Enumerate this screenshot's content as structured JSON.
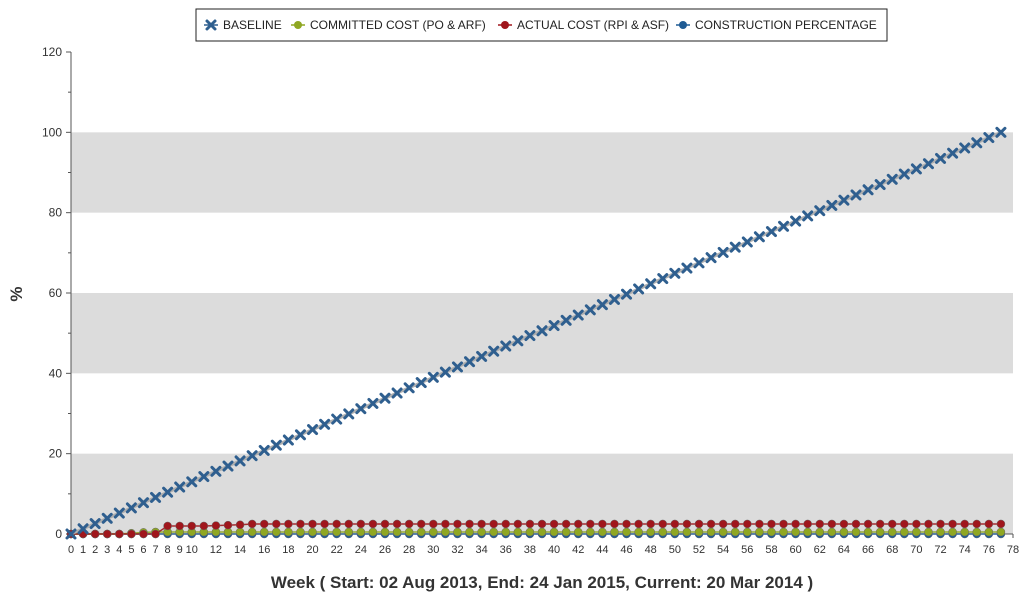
{
  "chart_data": {
    "type": "line",
    "xlabel": "Week ( Start: 02 Aug 2013, End: 24 Jan 2015, Current: 20 Mar 2014 )",
    "ylabel": "%",
    "ylim": [
      0,
      120
    ],
    "yticks": [
      0,
      20,
      40,
      60,
      80,
      100,
      120
    ],
    "xlim": [
      0,
      78
    ],
    "xtick_labels": [
      "0",
      "1",
      "2",
      "3",
      "4",
      "5",
      "6",
      "7",
      "8",
      "9",
      "10",
      "12",
      "14",
      "16",
      "18",
      "20",
      "22",
      "24",
      "26",
      "28",
      "30",
      "32",
      "34",
      "36",
      "38",
      "40",
      "42",
      "44",
      "46",
      "48",
      "50",
      "52",
      "54",
      "56",
      "58",
      "60",
      "62",
      "64",
      "66",
      "68",
      "70",
      "72",
      "74",
      "76",
      "78"
    ],
    "grid_bands": true,
    "legend_position": "top-center",
    "x_points": 78,
    "series": [
      {
        "name": "BASELINE",
        "marker": "x",
        "color": "#2f5f8f",
        "values": [
          0,
          1.3,
          2.6,
          3.9,
          5.2,
          6.5,
          7.8,
          9.1,
          10.4,
          11.7,
          13.0,
          14.3,
          15.6,
          16.9,
          18.2,
          19.5,
          20.8,
          22.1,
          23.4,
          24.7,
          26.0,
          27.3,
          28.6,
          29.9,
          31.2,
          32.5,
          33.8,
          35.1,
          36.4,
          37.7,
          39.0,
          40.3,
          41.6,
          42.9,
          44.2,
          45.5,
          46.8,
          48.1,
          49.4,
          50.6,
          51.9,
          53.2,
          54.5,
          55.8,
          57.1,
          58.4,
          59.7,
          61.0,
          62.3,
          63.6,
          64.9,
          66.2,
          67.5,
          68.8,
          70.1,
          71.4,
          72.7,
          74.0,
          75.3,
          76.6,
          77.9,
          79.2,
          80.5,
          81.8,
          83.1,
          84.4,
          85.7,
          87.0,
          88.3,
          89.6,
          90.9,
          92.2,
          93.5,
          94.8,
          96.1,
          97.4,
          98.7,
          100
        ]
      },
      {
        "name": "COMMITTED COST (PO & ARF)",
        "marker": "circle",
        "color": "#8fa722",
        "values": [
          0,
          0,
          0,
          0,
          0,
          0.2,
          0.4,
          0.5,
          0.5,
          0.5,
          0.5,
          0.5,
          0.5,
          0.5,
          0.5,
          0.5,
          0.5,
          0.5,
          0.5,
          0.5,
          0.5,
          0.5,
          0.5,
          0.5,
          0.5,
          0.5,
          0.5,
          0.5,
          0.5,
          0.5,
          0.5,
          0.5,
          0.5,
          0.5,
          0.5,
          0.5,
          0.5,
          0.5,
          0.5,
          0.5,
          0.5,
          0.5,
          0.5,
          0.5,
          0.5,
          0.5,
          0.5,
          0.5,
          0.5,
          0.5,
          0.5,
          0.5,
          0.5,
          0.5,
          0.5,
          0.5,
          0.5,
          0.5,
          0.5,
          0.5,
          0.5,
          0.5,
          0.5,
          0.5,
          0.5,
          0.5,
          0.5,
          0.5,
          0.5,
          0.5,
          0.5,
          0.5,
          0.5,
          0.5,
          0.5,
          0.5,
          0.5,
          0.5
        ]
      },
      {
        "name": "ACTUAL COST (RPI & ASF)",
        "marker": "circle",
        "color": "#a0161c",
        "values": [
          0,
          0,
          0,
          0,
          0,
          0,
          0,
          0,
          2.0,
          2.0,
          2.0,
          2.0,
          2.1,
          2.2,
          2.3,
          2.5,
          2.5,
          2.5,
          2.5,
          2.5,
          2.5,
          2.5,
          2.5,
          2.5,
          2.5,
          2.5,
          2.5,
          2.5,
          2.5,
          2.5,
          2.5,
          2.5,
          2.5,
          2.5,
          2.5,
          2.5,
          2.5,
          2.5,
          2.5,
          2.5,
          2.5,
          2.5,
          2.5,
          2.5,
          2.5,
          2.5,
          2.5,
          2.5,
          2.5,
          2.5,
          2.5,
          2.5,
          2.5,
          2.5,
          2.5,
          2.5,
          2.5,
          2.5,
          2.5,
          2.5,
          2.5,
          2.5,
          2.5,
          2.5,
          2.5,
          2.5,
          2.5,
          2.5,
          2.5,
          2.5,
          2.5,
          2.5,
          2.5,
          2.5,
          2.5,
          2.5,
          2.5,
          2.5
        ]
      },
      {
        "name": "CONSTRUCTION PERCENTAGE",
        "marker": "circle",
        "color": "#1f5b94",
        "values": [
          0,
          0,
          0,
          0,
          0,
          0,
          0,
          0,
          0,
          0,
          0,
          0,
          0,
          0,
          0,
          0,
          0,
          0,
          0,
          0,
          0,
          0,
          0,
          0,
          0,
          0,
          0,
          0,
          0,
          0,
          0,
          0,
          0,
          0,
          0,
          0,
          0,
          0,
          0,
          0,
          0,
          0,
          0,
          0,
          0,
          0,
          0,
          0,
          0,
          0,
          0,
          0,
          0,
          0,
          0,
          0,
          0,
          0,
          0,
          0,
          0,
          0,
          0,
          0,
          0,
          0,
          0,
          0,
          0,
          0,
          0,
          0,
          0,
          0,
          0,
          0,
          0,
          0
        ]
      }
    ]
  }
}
